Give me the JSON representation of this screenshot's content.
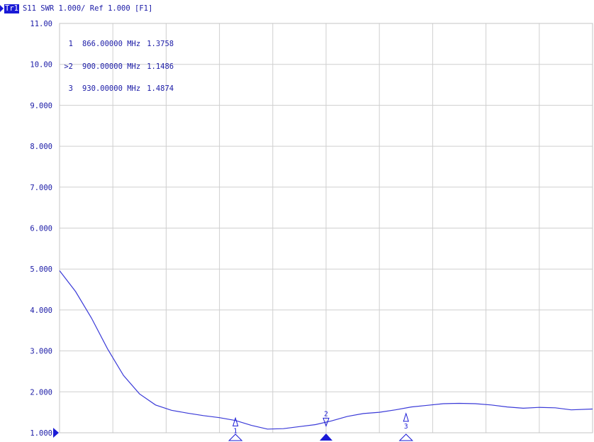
{
  "trace": {
    "badge": "Tr1",
    "info": "S11  SWR 1.000/ Ref 1.000 [F1]"
  },
  "marker_table": [
    {
      "id": "1",
      "freq": "866.00000 MHz",
      "value": "1.3758"
    },
    {
      "id": ">2",
      "freq": "900.00000 MHz",
      "value": "1.1486"
    },
    {
      "id": "3",
      "freq": "930.00000 MHz",
      "value": "1.4874"
    }
  ],
  "chart_data": {
    "type": "line",
    "title": "",
    "xlabel": "",
    "ylabel": "",
    "ylim": [
      1.0,
      11.0
    ],
    "y_ticks": [
      "1.000",
      "2.000",
      "3.000",
      "4.000",
      "5.000",
      "6.000",
      "7.000",
      "8.000",
      "9.000",
      "10.00",
      "11.00"
    ],
    "ref_level": 1.0,
    "grid": true,
    "x_divisions": 10,
    "x_frequency_points_mhz": [
      866,
      900,
      930
    ],
    "series": [
      {
        "color": "#3a3ad8",
        "x_div": [
          0,
          0.3,
          0.6,
          0.9,
          1.2,
          1.5,
          1.8,
          2.1,
          2.4,
          2.7,
          3.0,
          3.3,
          3.6,
          3.9,
          4.2,
          4.5,
          4.8,
          5.1,
          5.4,
          5.7,
          6.0,
          6.3,
          6.6,
          6.9,
          7.2,
          7.5,
          7.8,
          8.1,
          8.4,
          8.7,
          9.0,
          9.3,
          9.6,
          10.0
        ],
        "values": [
          4.96,
          4.45,
          3.8,
          3.05,
          2.4,
          1.95,
          1.68,
          1.55,
          1.48,
          1.42,
          1.37,
          1.3,
          1.18,
          1.09,
          1.1,
          1.15,
          1.2,
          1.29,
          1.4,
          1.47,
          1.5,
          1.56,
          1.63,
          1.67,
          1.71,
          1.72,
          1.71,
          1.68,
          1.63,
          1.6,
          1.62,
          1.61,
          1.56,
          1.58
        ]
      }
    ],
    "markers": [
      {
        "id": "1",
        "x_div": 3.3,
        "value": 1.3758,
        "active": false
      },
      {
        "id": "2",
        "x_div": 5.0,
        "value": 1.1486,
        "active": true
      },
      {
        "id": "3",
        "x_div": 6.5,
        "value": 1.4874,
        "active": false
      }
    ],
    "ref_marker_color": "#1a1ad6",
    "label_color": "#1a1aa6",
    "grid_color": "#cfcfcf"
  }
}
